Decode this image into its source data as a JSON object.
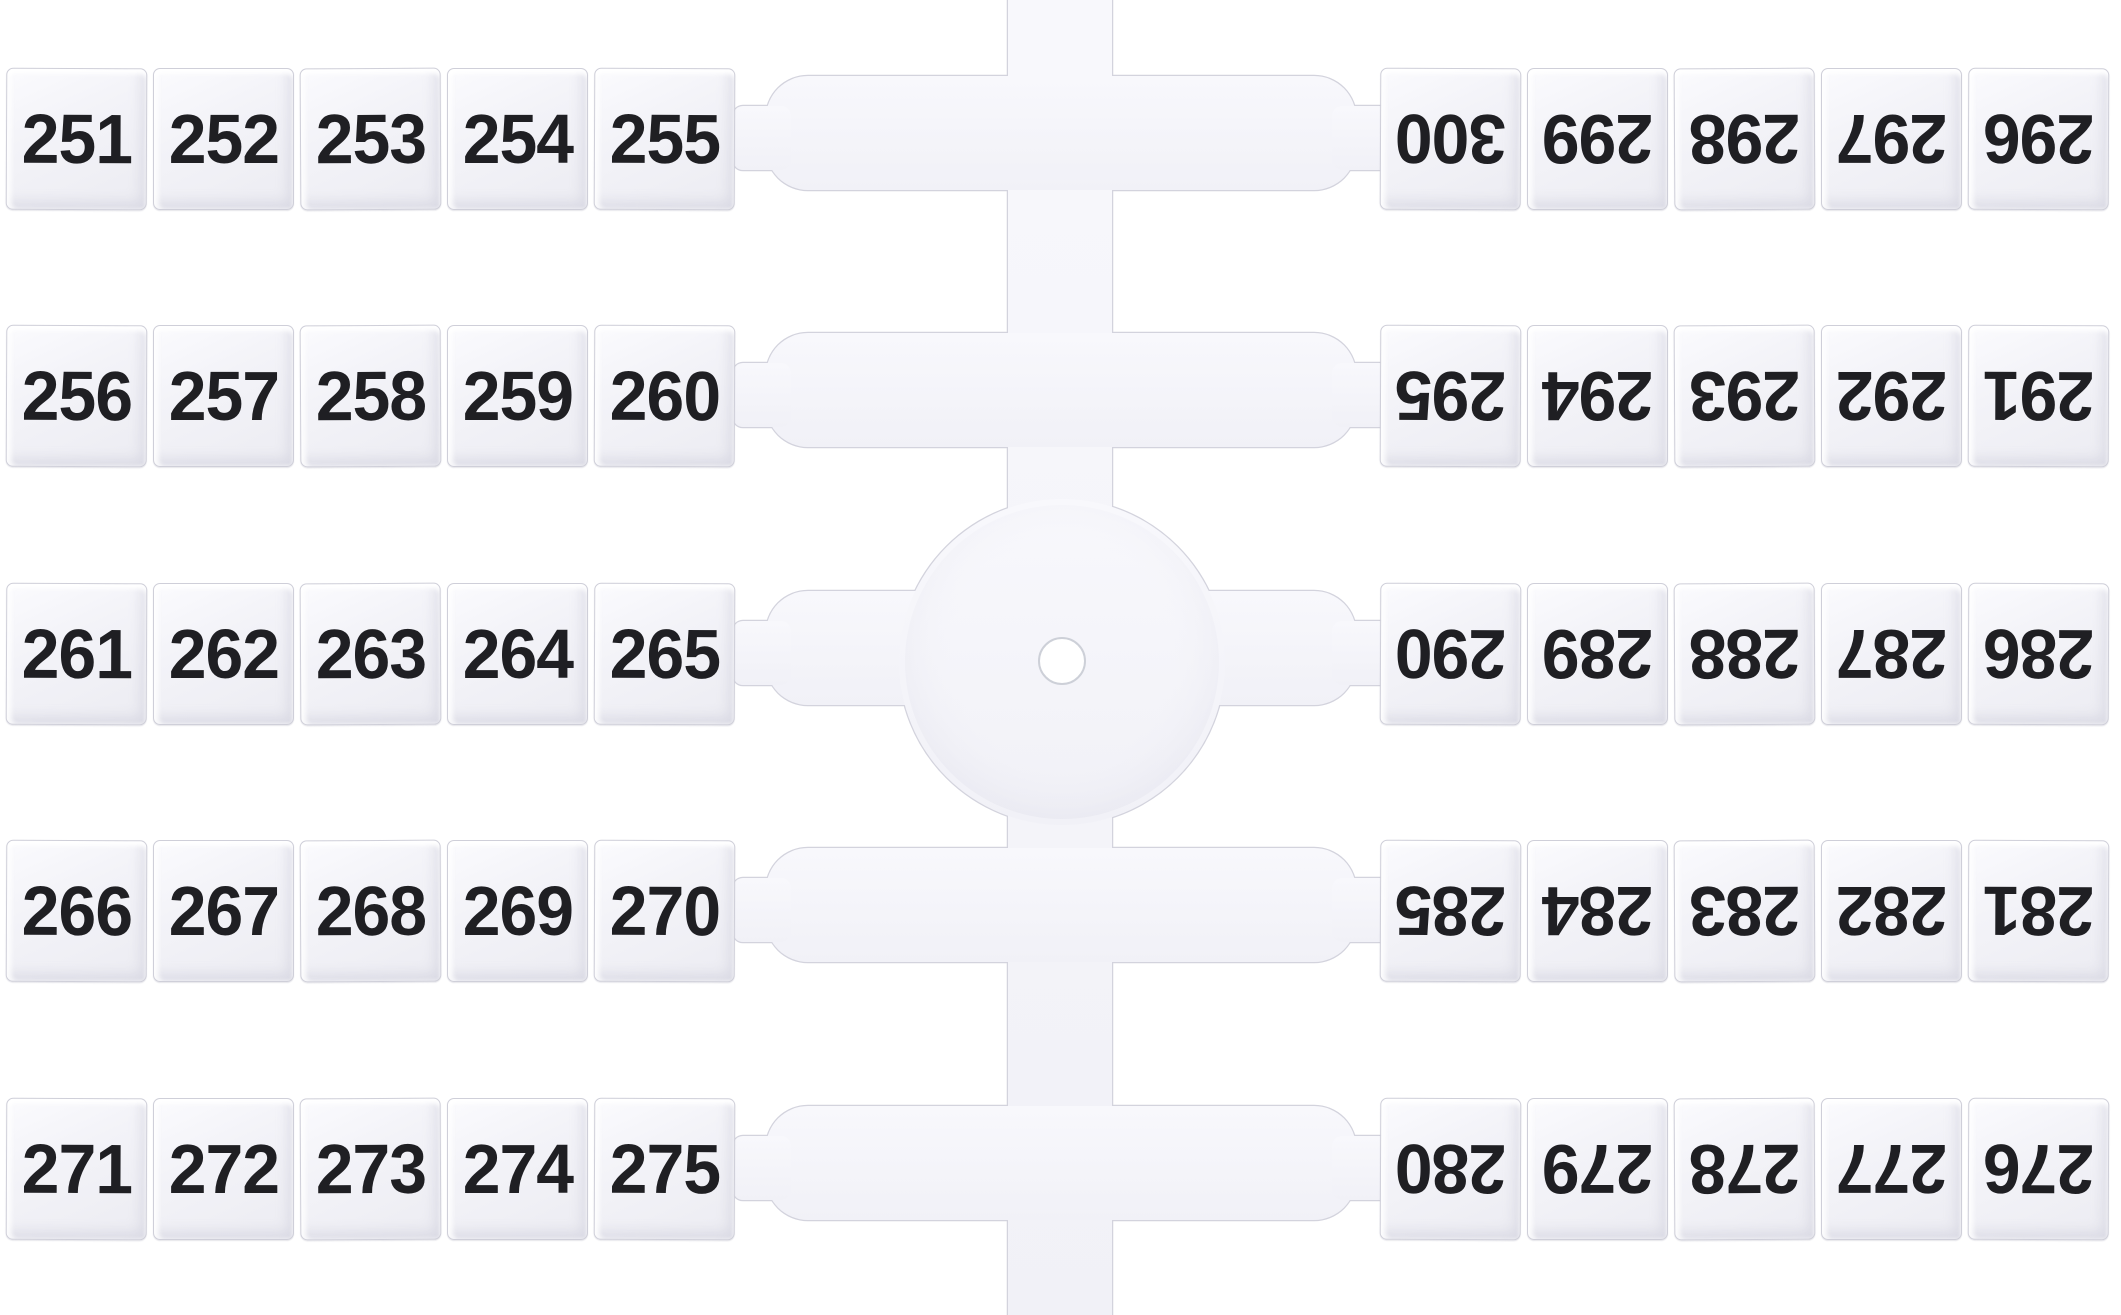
{
  "photo": {
    "subject": "plastic-marker-tag-sprue",
    "colors": {
      "background": "#ffffff",
      "plastic": "#f4f4f9",
      "plastic_edge": "#d3d3dd",
      "tag_face": "#f0f0f5",
      "tag_edge": "#cfcfd9",
      "digit": "#1f1f23"
    }
  },
  "rows": [
    {
      "left": [
        "251",
        "252",
        "253",
        "254",
        "255"
      ],
      "right": [
        "300",
        "299",
        "298",
        "297",
        "296"
      ]
    },
    {
      "left": [
        "256",
        "257",
        "258",
        "259",
        "260"
      ],
      "right": [
        "295",
        "294",
        "293",
        "292",
        "291"
      ]
    },
    {
      "left": [
        "261",
        "262",
        "263",
        "264",
        "265"
      ],
      "right": [
        "290",
        "289",
        "288",
        "287",
        "286"
      ]
    },
    {
      "left": [
        "266",
        "267",
        "268",
        "269",
        "270"
      ],
      "right": [
        "285",
        "284",
        "283",
        "282",
        "281"
      ]
    },
    {
      "left": [
        "271",
        "272",
        "273",
        "274",
        "275"
      ],
      "right": [
        "280",
        "279",
        "278",
        "277",
        "276"
      ]
    }
  ]
}
